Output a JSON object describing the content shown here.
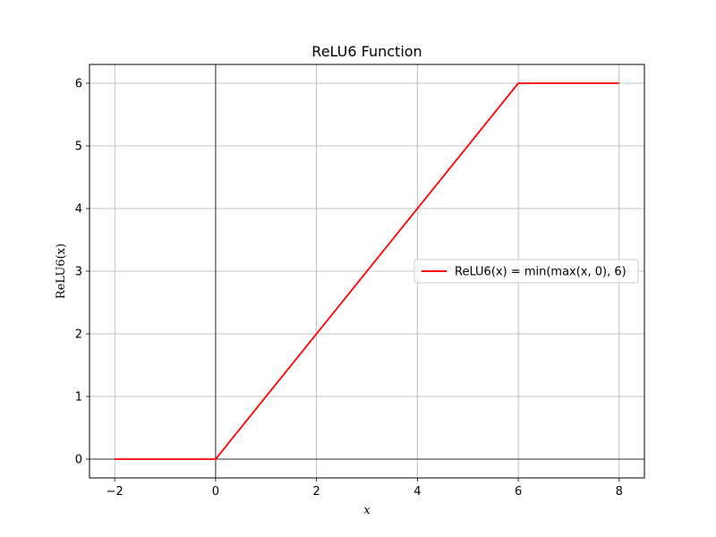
{
  "chart_data": {
    "type": "line",
    "title": "ReLU6 Function",
    "xlabel": "x",
    "ylabel": "ReLU6(x)",
    "xlim": [
      -2.5,
      8.5
    ],
    "ylim": [
      -0.3,
      6.3
    ],
    "xticks": [
      -2,
      0,
      2,
      4,
      6,
      8
    ],
    "xtick_labels": [
      "−2",
      "0",
      "2",
      "4",
      "6",
      "8"
    ],
    "yticks": [
      0,
      1,
      2,
      3,
      4,
      5,
      6
    ],
    "ytick_labels": [
      "0",
      "1",
      "2",
      "3",
      "4",
      "5",
      "6"
    ],
    "grid": true,
    "reference_lines": {
      "vertical_at_x": 0,
      "horizontal_at_y": 0,
      "color": "#000000"
    },
    "legend_position": "center-right",
    "series": [
      {
        "name": "ReLU6(x) = min(max(x, 0), 6)",
        "color": "#ff0000",
        "x": [
          -2,
          0,
          6,
          8
        ],
        "y": [
          0,
          0,
          6,
          6
        ]
      }
    ]
  }
}
